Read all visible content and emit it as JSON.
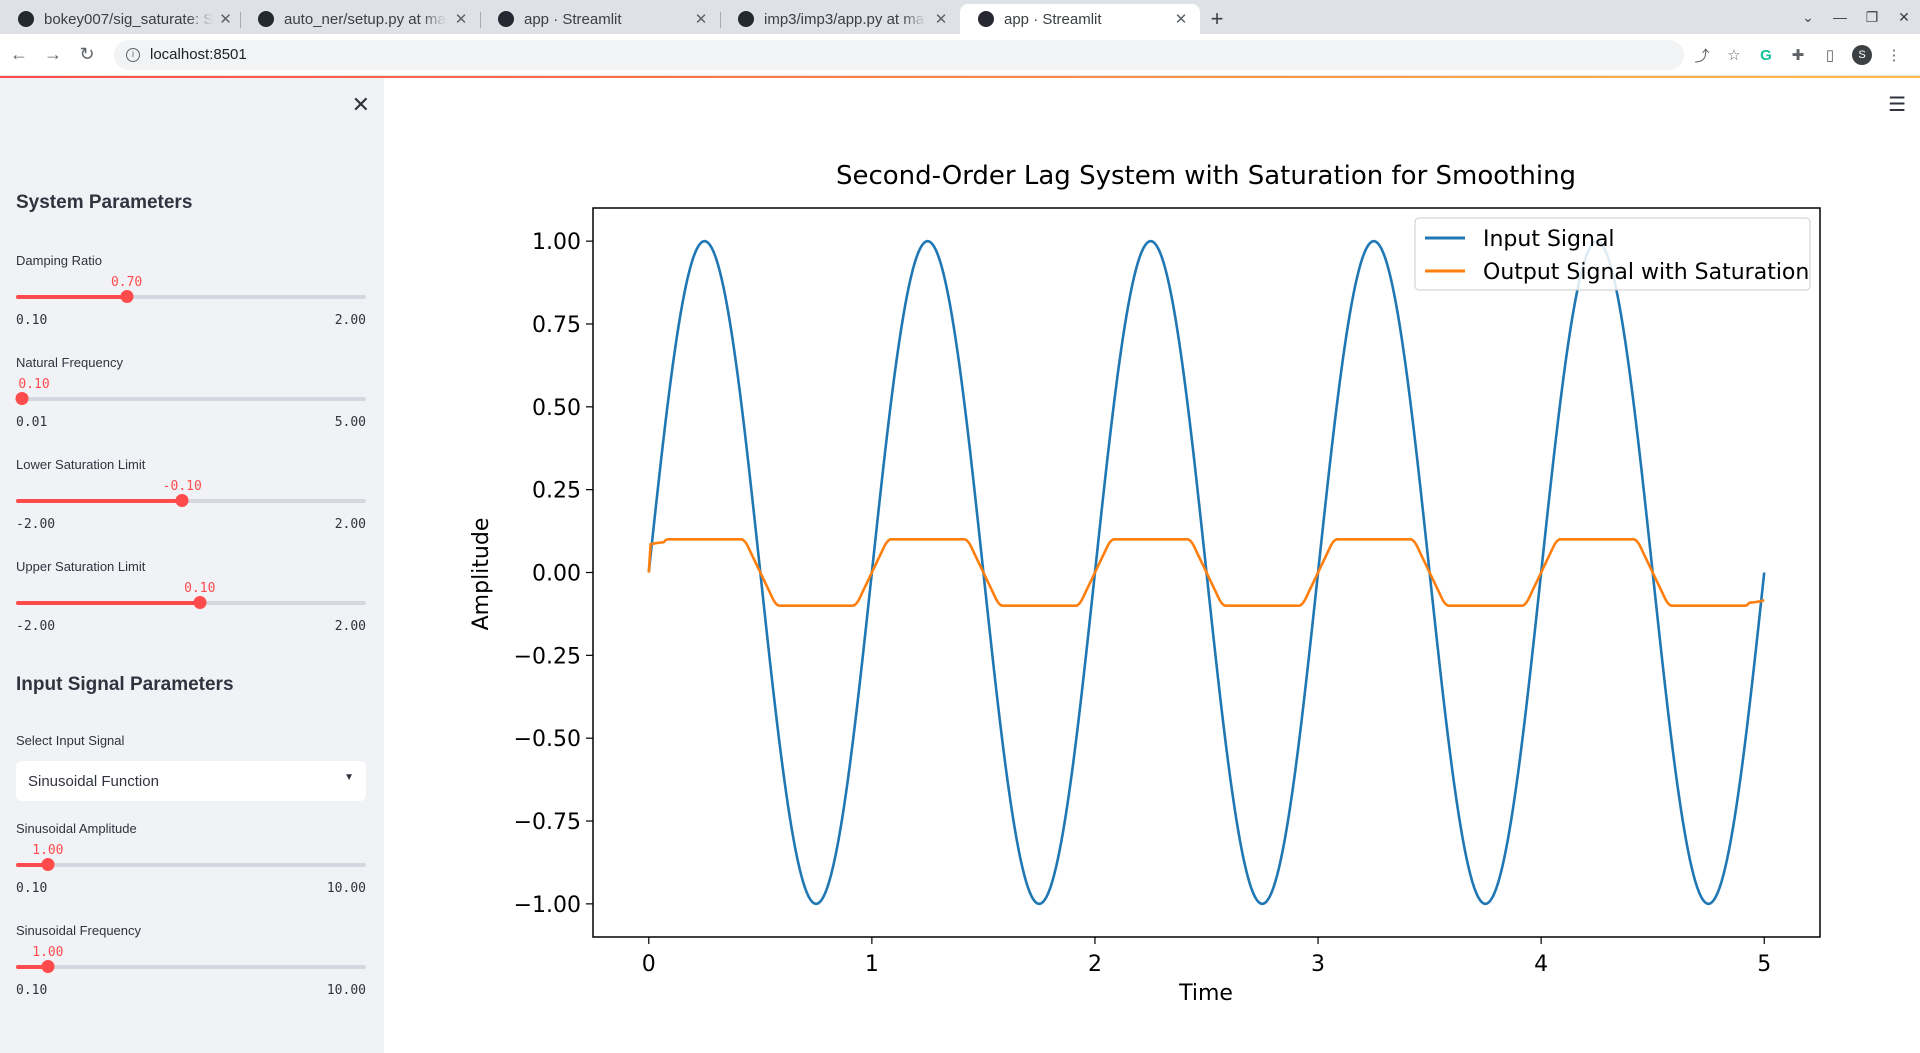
{
  "browser": {
    "tabs": [
      {
        "title": "bokey007/sig_saturate: S",
        "icon": "github-icon",
        "active": false
      },
      {
        "title": "auto_ner/setup.py at ma",
        "icon": "github-icon",
        "active": false
      },
      {
        "title": "app · Streamlit",
        "icon": "streamlit-icon",
        "active": false
      },
      {
        "title": "imp3/imp3/app.py at ma",
        "icon": "github-icon",
        "active": false
      },
      {
        "title": "app · Streamlit",
        "icon": "streamlit-icon",
        "active": true
      }
    ],
    "url": "localhost:8501",
    "profile_initial": "S"
  },
  "sidebar": {
    "system_title": "System Parameters",
    "sliders": [
      {
        "label": "Damping Ratio",
        "value": "0.70",
        "min": "0.10",
        "max": "2.00",
        "fraction": 0.316
      },
      {
        "label": "Natural Frequency",
        "value": "0.10",
        "min": "0.01",
        "max": "5.00",
        "fraction": 0.018
      },
      {
        "label": "Lower Saturation Limit",
        "value": "-0.10",
        "min": "-2.00",
        "max": "2.00",
        "fraction": 0.475
      },
      {
        "label": "Upper Saturation Limit",
        "value": "0.10",
        "min": "-2.00",
        "max": "2.00",
        "fraction": 0.525
      }
    ],
    "input_title": "Input Signal Parameters",
    "select_label": "Select Input Signal",
    "select_value": "Sinusoidal Function",
    "input_sliders": [
      {
        "label": "Sinusoidal Amplitude",
        "value": "1.00",
        "min": "0.10",
        "max": "10.00",
        "fraction": 0.091
      },
      {
        "label": "Sinusoidal Frequency",
        "value": "1.00",
        "min": "0.10",
        "max": "10.00",
        "fraction": 0.091
      }
    ]
  },
  "chart_data": {
    "type": "line",
    "title": "Second-Order Lag System with Saturation for Smoothing",
    "xlabel": "Time",
    "ylabel": "Amplitude",
    "xlim": [
      -0.25,
      5.25
    ],
    "ylim": [
      -1.1,
      1.1
    ],
    "xticks": [
      "0",
      "1",
      "2",
      "3",
      "4",
      "5"
    ],
    "yticks": [
      "1.00",
      "0.75",
      "0.50",
      "0.25",
      "0.00",
      "−0.25",
      "−0.50",
      "−0.75",
      "−1.00"
    ],
    "legend": "top-right",
    "series": [
      {
        "name": "Input Signal",
        "color": "#1f77b4",
        "function": "sin(2*pi*t)",
        "x_range": [
          0,
          5
        ]
      },
      {
        "name": "Output Signal with Saturation",
        "color": "#ff7f0e",
        "saturation": [
          -0.1,
          0.1
        ],
        "x_range": [
          0,
          5
        ]
      }
    ]
  }
}
